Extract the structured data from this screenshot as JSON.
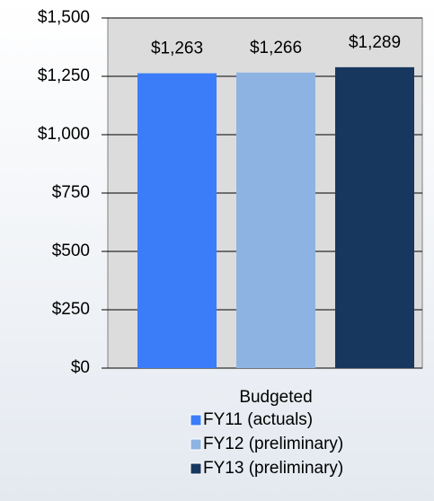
{
  "chart_data": {
    "type": "bar",
    "categories": [
      "Budgeted"
    ],
    "series": [
      {
        "name": "FY11 (actuals)",
        "color": "#3b7df8",
        "values": [
          1263
        ],
        "value_labels": [
          "$1,263"
        ]
      },
      {
        "name": "FY12 (preliminary)",
        "color": "#8db3e2",
        "values": [
          1266
        ],
        "value_labels": [
          "$1,266"
        ]
      },
      {
        "name": "FY13 (preliminary)",
        "color": "#17375e",
        "values": [
          1289
        ],
        "value_labels": [
          "$1,289"
        ]
      }
    ],
    "ylim": [
      0,
      1500
    ],
    "yticks": [
      {
        "value": 0,
        "label": "$0"
      },
      {
        "value": 250,
        "label": "$250"
      },
      {
        "value": 500,
        "label": "$500"
      },
      {
        "value": 750,
        "label": "$750"
      },
      {
        "value": 1000,
        "label": "$1,000"
      },
      {
        "value": 1250,
        "label": "$1,250"
      },
      {
        "value": 1500,
        "label": "$1,500"
      }
    ],
    "grid": true,
    "legend": "bottom"
  }
}
